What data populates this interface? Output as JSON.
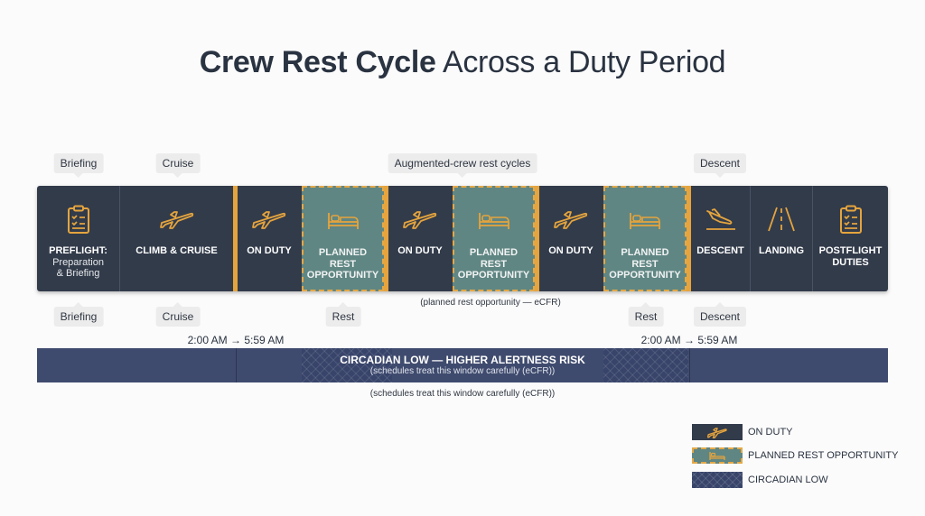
{
  "title": {
    "bold": "Crew Rest Cycle",
    "rest": " Across a Duty Period"
  },
  "top_tags": [
    "Briefing",
    "Cruise",
    "Augmented-crew rest cycles",
    "Descent"
  ],
  "segments": [
    {
      "label": "PREFLIGHT:",
      "sub": "Preparation\n& Briefing",
      "icon": "clipboard-icon"
    },
    {
      "label": "CLIMB & CRUISE",
      "icon": "plane-icon"
    },
    {
      "label": "ON DUTY",
      "icon": "plane-icon"
    },
    {
      "label": "PLANNED\nREST\nOPPORTUNITY",
      "icon": "bed-icon"
    },
    {
      "label": "ON DUTY",
      "icon": "plane-icon"
    },
    {
      "label": "PLANNED\nREST\nOPPORTUNITY",
      "icon": "bed-icon"
    },
    {
      "label": "ON DUTY",
      "icon": "plane-icon"
    },
    {
      "label": "PLANNED\nREST\nOPPORTUNITY",
      "icon": "bed-icon"
    },
    {
      "label": "DESCENT",
      "icon": "plane-landing-icon"
    },
    {
      "label": "LANDING",
      "icon": "runway-icon"
    },
    {
      "label": "POSTFLIGHT\nDUTIES",
      "icon": "clipboard-icon"
    }
  ],
  "bottom_tags": [
    "Briefing",
    "Cruise",
    "Rest",
    "Rest",
    "Descent"
  ],
  "rest_note": "(planned rest opportunity — eCFR)",
  "time_labels": [
    "2:00 AM → 5:59 AM",
    "2:00 AM → 5:59 AM"
  ],
  "circadian": {
    "heading": "CIRCADIAN LOW — HIGHER ALERTNESS RISK",
    "sub": "(schedules treat this window carefully (eCFR))",
    "note": "(schedules treat this window carefully (eCFR))"
  },
  "legend": [
    {
      "label": "ON DUTY"
    },
    {
      "label": "PLANNED REST OPPORTUNITY"
    },
    {
      "label": "CIRCADIAN LOW"
    }
  ],
  "colors": {
    "duty": "#323b4a",
    "rest": "#5f8683",
    "accent": "#e5a43d",
    "circadian": "#3f4b6e"
  }
}
